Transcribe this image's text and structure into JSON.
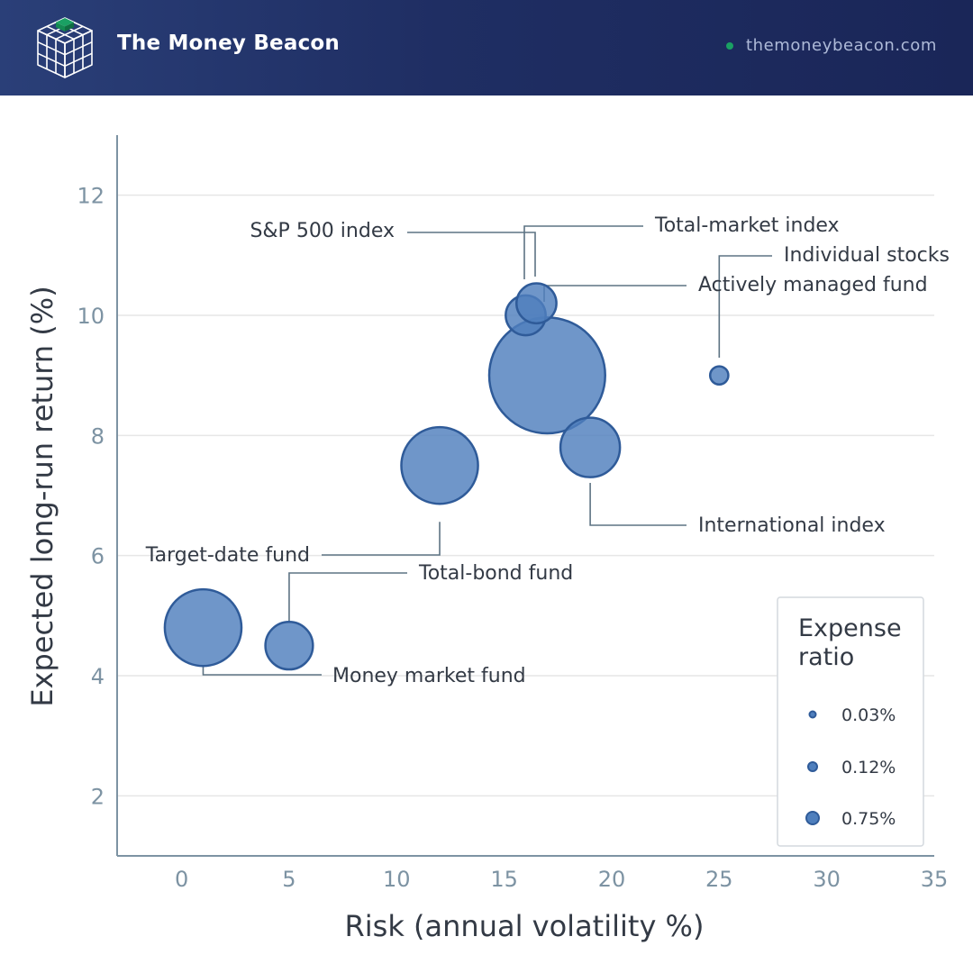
{
  "header": {
    "brand": "The Money Beacon",
    "site": "themoneybeacon.com"
  },
  "colors": {
    "header_bg": "#1f2e63",
    "bubble_fill": "#4f7fbd",
    "bubble_stroke": "#2f5b99",
    "site_dot": "#1aa063",
    "axis": "#7d93a3",
    "grid": "#e6e6e6"
  },
  "chart_data": {
    "type": "scatter",
    "xlabel": "Risk (annual volatility %)",
    "ylabel": "Expected long-run return (%)",
    "xlim": [
      -3,
      35
    ],
    "ylim": [
      1,
      13
    ],
    "xticks": [
      0,
      5,
      10,
      15,
      20,
      25,
      30,
      35
    ],
    "yticks": [
      2,
      4,
      6,
      8,
      10,
      12
    ],
    "grid": "horizontal",
    "size_variable": "Expense ratio (%)",
    "points": [
      {
        "label": "Money market fund",
        "x": 1,
        "y": 4.8,
        "expense_ratio": 0.35
      },
      {
        "label": "Total-bond fund",
        "x": 5,
        "y": 4.5,
        "expense_ratio": 0.12
      },
      {
        "label": "Target-date fund",
        "x": 12,
        "y": 7.5,
        "expense_ratio": 0.35
      },
      {
        "label": "S&P 500 index",
        "x": 16,
        "y": 10,
        "expense_ratio": 0.08
      },
      {
        "label": "Total-market index",
        "x": 16.5,
        "y": 10.2,
        "expense_ratio": 0.08
      },
      {
        "label": "Actively managed fund",
        "x": 17,
        "y": 9,
        "expense_ratio": 0.85
      },
      {
        "label": "International index",
        "x": 19,
        "y": 7.8,
        "expense_ratio": 0.2
      },
      {
        "label": "Individual stocks",
        "x": 25,
        "y": 9,
        "expense_ratio": 0.01
      }
    ],
    "legend": {
      "title_line1": "Expense",
      "title_line2": "ratio",
      "position": "bottom-right",
      "entries": [
        {
          "label": "0.03%",
          "value": 0.03
        },
        {
          "label": "0.12%",
          "value": 0.12
        },
        {
          "label": "0.75%",
          "value": 0.75
        }
      ]
    }
  }
}
